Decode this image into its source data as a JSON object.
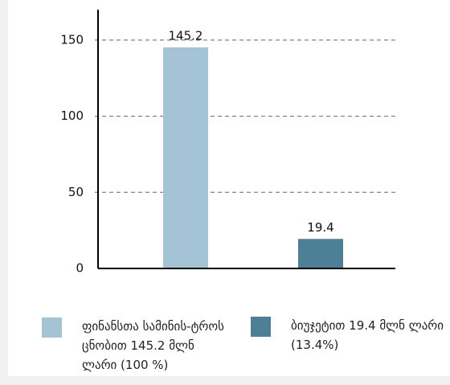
{
  "chart_data": {
    "type": "bar",
    "series": [
      {
        "name": "ფინანსთა სამინის-ტროს ცნობით 145.2 მლნ ლარი (100 %)",
        "color": "#a4c3d4",
        "values": [
          145.2
        ]
      },
      {
        "name": "ბიუჯეტით 19.4 მლნ ლარი (13.4%)",
        "color": "#4d7f96",
        "values": [
          19.4
        ]
      }
    ],
    "ylim": [
      0,
      170
    ],
    "yticks": [
      0,
      50,
      100,
      150
    ],
    "grid": true
  }
}
